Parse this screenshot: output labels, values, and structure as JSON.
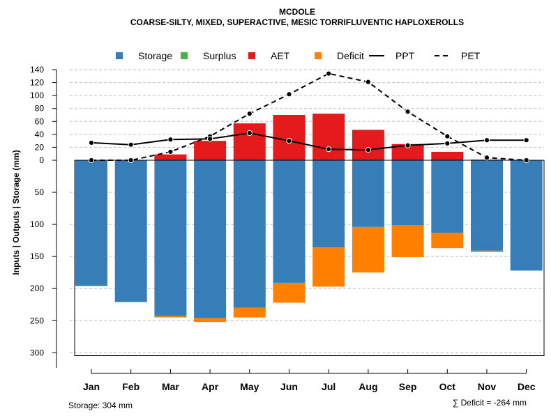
{
  "chart_data": {
    "type": "bar",
    "title": "MCDOLE",
    "subtitle": "COARSE-SILTY, MIXED, SUPERACTIVE, MESIC TORRIFLUVENTIC HAPLOXEROLLS",
    "ylabel": "Inputs | Outputs | Storage    (mm)",
    "categories": [
      "Jan",
      "Feb",
      "Mar",
      "Apr",
      "May",
      "Jun",
      "Jul",
      "Aug",
      "Sep",
      "Oct",
      "Nov",
      "Dec"
    ],
    "legend": [
      {
        "name": "Storage",
        "kind": "box",
        "color": "#377EB8"
      },
      {
        "name": "Surplus",
        "kind": "box",
        "color": "#4DAF4A"
      },
      {
        "name": "AET",
        "kind": "box",
        "color": "#E41A1C"
      },
      {
        "name": "Deficit",
        "kind": "box",
        "color": "#FF7F00"
      },
      {
        "name": "PPT",
        "kind": "solid-line",
        "color": "#000000"
      },
      {
        "name": "PET",
        "kind": "dashed-line",
        "color": "#000000"
      }
    ],
    "upper_axis": {
      "ylim": [
        0,
        140
      ],
      "ticks": [
        "0",
        "20",
        "40",
        "60",
        "80",
        "100",
        "120",
        "140"
      ]
    },
    "lower_axis": {
      "ylim": [
        0,
        304
      ],
      "ticks": [
        "50",
        "100",
        "150",
        "200",
        "250",
        "300"
      ],
      "note": "depth below zero line"
    },
    "series": [
      {
        "name": "AET",
        "part": "upper",
        "values": [
          0,
          0,
          9,
          30,
          57,
          70,
          72,
          47,
          25,
          13,
          1,
          0
        ]
      },
      {
        "name": "Storage",
        "part": "lower",
        "values": [
          196,
          221,
          243,
          246,
          230,
          191,
          136,
          104,
          101,
          113,
          141,
          172
        ]
      },
      {
        "name": "Deficit",
        "part": "lower",
        "values": [
          0,
          0,
          2,
          6,
          15,
          31,
          61,
          71,
          50,
          24,
          2,
          0
        ]
      },
      {
        "name": "PPT",
        "part": "upper",
        "values": [
          27,
          24,
          32,
          33,
          42,
          30,
          17,
          16,
          23,
          26,
          31,
          31
        ]
      },
      {
        "name": "PET",
        "part": "upper",
        "values": [
          0,
          0,
          13,
          37,
          72,
          102,
          134,
          121,
          75,
          37,
          4,
          0
        ]
      }
    ],
    "storage_label": "Storage: 304 mm",
    "deficit_label": "∑ Deficit = -264 mm"
  }
}
